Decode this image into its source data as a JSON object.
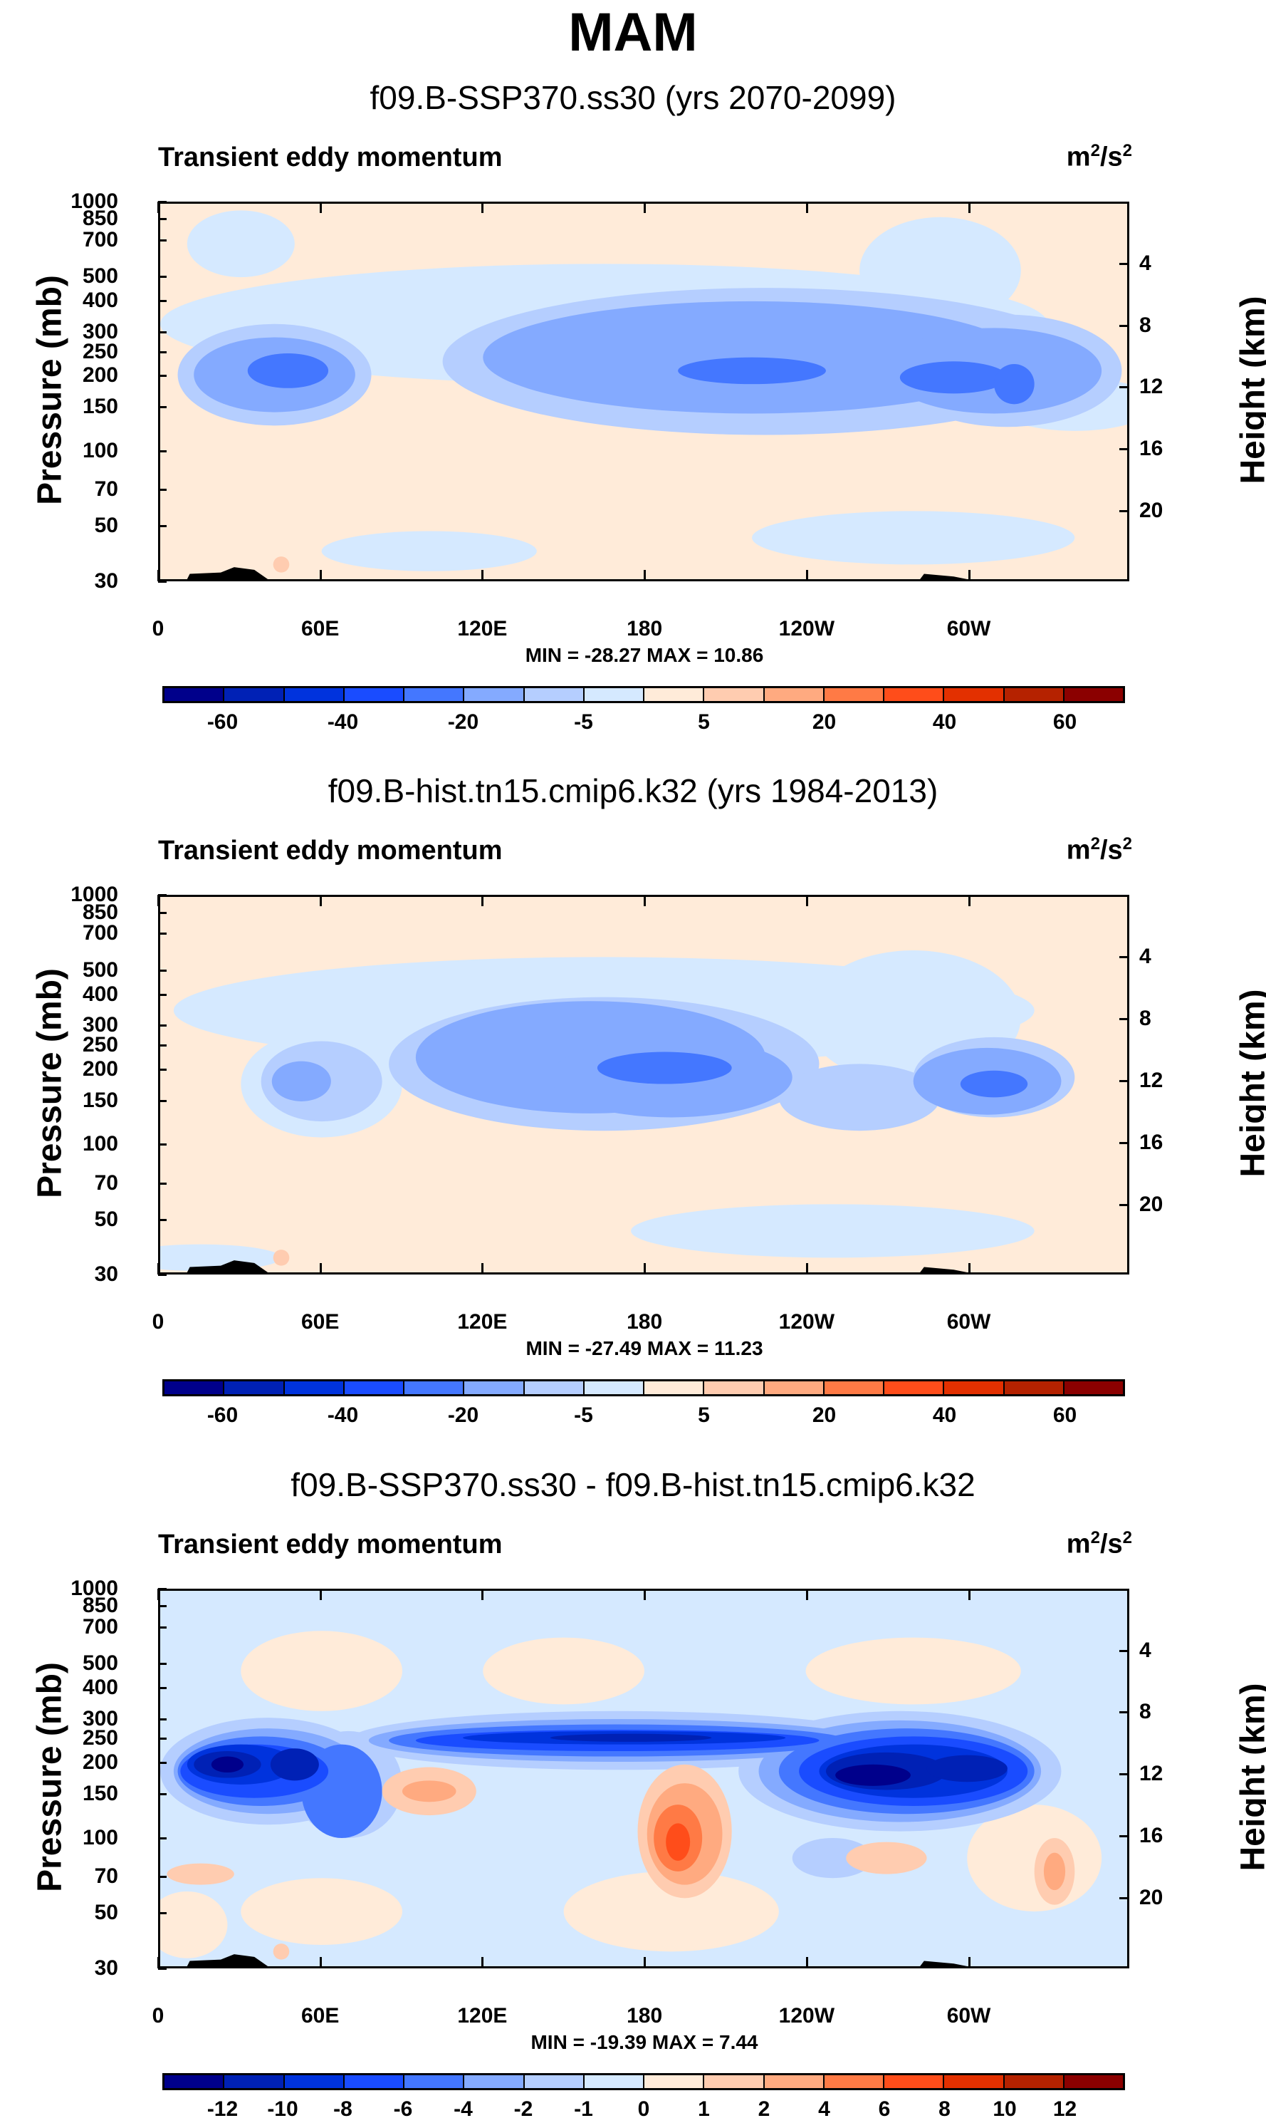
{
  "title": "MAM",
  "chart_data": [
    {
      "type": "heatmap",
      "title": "f09.B-SSP370.ss30 (yrs 2070-2099)",
      "variable": "Transient eddy momentum",
      "units": "m2/s2",
      "xlabel": "",
      "ylabel": "Pressure (mb)",
      "y2label": "Height (km)",
      "xticks": [
        "0",
        "60E",
        "120E",
        "180",
        "120W",
        "60W"
      ],
      "yticks": [
        "30",
        "50",
        "70",
        "100",
        "150",
        "200",
        "250",
        "300",
        "400",
        "500",
        "700",
        "850",
        "1000"
      ],
      "y2ticks": [
        "20",
        "16",
        "12",
        "8",
        "4"
      ],
      "stats": "MIN = -28.27   MAX =  10.86",
      "min": -28.27,
      "max": 10.86,
      "colorbar_labels": [
        "-60",
        "-40",
        "-20",
        "-5",
        "5",
        "20",
        "40",
        "60"
      ]
    },
    {
      "type": "heatmap",
      "title": "f09.B-hist.tn15.cmip6.k32 (yrs 1984-2013)",
      "variable": "Transient eddy momentum",
      "units": "m2/s2",
      "xlabel": "",
      "ylabel": "Pressure (mb)",
      "y2label": "Height (km)",
      "xticks": [
        "0",
        "60E",
        "120E",
        "180",
        "120W",
        "60W"
      ],
      "yticks": [
        "30",
        "50",
        "70",
        "100",
        "150",
        "200",
        "250",
        "300",
        "400",
        "500",
        "700",
        "850",
        "1000"
      ],
      "y2ticks": [
        "20",
        "16",
        "12",
        "8",
        "4"
      ],
      "stats": "MIN = -27.49   MAX =  11.23",
      "min": -27.49,
      "max": 11.23,
      "colorbar_labels": [
        "-60",
        "-40",
        "-20",
        "-5",
        "5",
        "20",
        "40",
        "60"
      ]
    },
    {
      "type": "heatmap",
      "title": "f09.B-SSP370.ss30 - f09.B-hist.tn15.cmip6.k32",
      "variable": "Transient eddy momentum",
      "units": "m2/s2",
      "xlabel": "",
      "ylabel": "Pressure (mb)",
      "y2label": "Height (km)",
      "xticks": [
        "0",
        "60E",
        "120E",
        "180",
        "120W",
        "60W"
      ],
      "yticks": [
        "30",
        "50",
        "70",
        "100",
        "150",
        "200",
        "250",
        "300",
        "400",
        "500",
        "700",
        "850",
        "1000"
      ],
      "y2ticks": [
        "20",
        "16",
        "12",
        "8",
        "4"
      ],
      "stats": "MIN = -19.39   MAX =   7.44",
      "min": -19.39,
      "max": 7.44,
      "colorbar_labels": [
        "-12",
        "-10",
        "-8",
        "-6",
        "-4",
        "-2",
        "-1",
        "0",
        "1",
        "2",
        "4",
        "6",
        "8",
        "10",
        "12"
      ]
    }
  ],
  "colors": [
    "#00008b",
    "#0021b5",
    "#0033dd",
    "#1a4cff",
    "#4477ff",
    "#84aaff",
    "#b5ceff",
    "#d5e9ff",
    "#ffebd9",
    "#ffccb0",
    "#ffaa80",
    "#ff7a45",
    "#ff4d1a",
    "#e33000",
    "#b52200",
    "#8b0000"
  ]
}
